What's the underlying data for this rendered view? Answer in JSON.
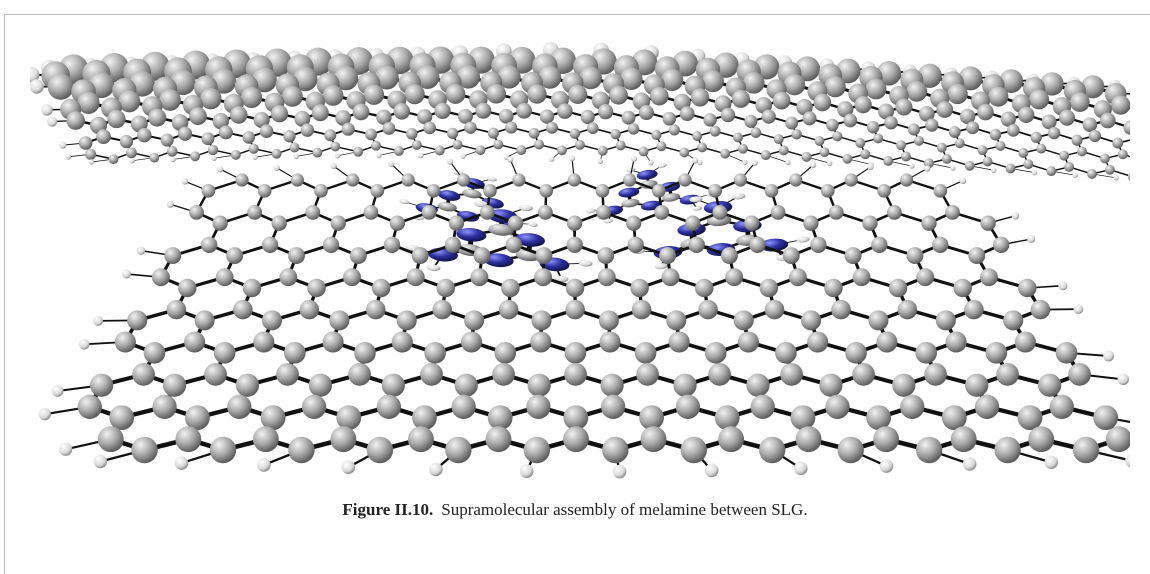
{
  "figure": {
    "label": "Figure II.10.",
    "caption": "Supramolecular assembly of melamine between SLG.",
    "colors": {
      "carbon": "#a9a9a9",
      "hydrogen": "#e8e8e8",
      "nitrogen": "#2b2f9e",
      "bond": "#111111"
    }
  }
}
